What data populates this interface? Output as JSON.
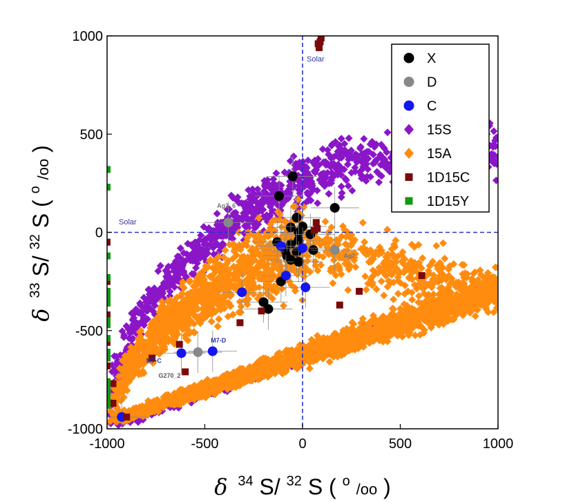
{
  "chart_data": {
    "type": "scatter",
    "title": "",
    "xlabel": {
      "prefix": "δ",
      "sup1": "34",
      "mid": "S/",
      "sup2": "32",
      "tail": "S (",
      "permil_sup": "o",
      "permil_sub": "/oo",
      "close": ")"
    },
    "ylabel": {
      "prefix": "δ",
      "sup1": "33",
      "mid": "S/",
      "sup2": "32",
      "tail": "S (",
      "permil_sup": "o",
      "permil_sub": "/oo",
      "close": ")"
    },
    "xlim": [
      -1000,
      1000
    ],
    "ylim": [
      -1000,
      1000
    ],
    "xticks": [
      -1000,
      -500,
      0,
      500,
      1000
    ],
    "yticks": [
      -1000,
      -500,
      0,
      500,
      1000
    ],
    "xtick_labels": [
      "-1000",
      "-500",
      "0",
      "500",
      "1000"
    ],
    "ytick_labels": [
      "-1000",
      "-500",
      "0",
      "500",
      "1000"
    ],
    "grid": false,
    "legend_position": "top-right",
    "solar_lines": {
      "x": 0,
      "y": 0,
      "label_v": "Solar",
      "label_h": "Solar",
      "color": "#2233cc"
    },
    "series": [
      {
        "name": "X",
        "marker": "circle",
        "color": "#000000",
        "points": [
          [
            -50,
            285
          ],
          [
            -120,
            185
          ],
          [
            165,
            125
          ],
          [
            -30,
            75
          ],
          [
            -60,
            25
          ],
          [
            0,
            30
          ],
          [
            -20,
            0
          ],
          [
            40,
            -10
          ],
          [
            -130,
            -50
          ],
          [
            -60,
            -60
          ],
          [
            -20,
            -40
          ],
          [
            -90,
            -90
          ],
          [
            -30,
            -100
          ],
          [
            -80,
            -120
          ],
          [
            -60,
            -140
          ],
          [
            -20,
            -150
          ],
          [
            55,
            -90
          ],
          [
            -110,
            -250
          ],
          [
            -200,
            -355
          ],
          [
            -175,
            -390
          ]
        ]
      },
      {
        "name": "D",
        "marker": "circle",
        "color": "#888888",
        "points": [
          [
            -380,
            50
          ],
          [
            165,
            -90
          ],
          [
            -535,
            -610
          ]
        ]
      },
      {
        "name": "C",
        "marker": "circle",
        "color": "#1515ee",
        "points": [
          [
            -110,
            -70
          ],
          [
            0,
            -80
          ],
          [
            -85,
            -220
          ],
          [
            15,
            -280
          ],
          [
            -310,
            -305
          ],
          [
            -620,
            -615
          ],
          [
            -460,
            -605
          ],
          [
            -925,
            -940
          ]
        ]
      },
      {
        "name": "15S",
        "marker": "diamond",
        "color": "#8a16c8",
        "points": []
      },
      {
        "name": "15A",
        "marker": "diamond",
        "color": "#ff8c0f",
        "points": []
      },
      {
        "name": "1D15C",
        "marker": "square",
        "color": "#7a0a0a",
        "points": [
          [
            80,
            960
          ],
          [
            85,
            940
          ],
          [
            90,
            970
          ],
          [
            95,
            990
          ],
          [
            70,
            50
          ],
          [
            75,
            20
          ],
          [
            60,
            10
          ],
          [
            -1000,
            -50
          ],
          [
            -1000,
            -250
          ],
          [
            -1000,
            -420
          ],
          [
            -1000,
            -560
          ],
          [
            -1000,
            -680
          ],
          [
            -1000,
            -790
          ],
          [
            -1000,
            -880
          ],
          [
            -970,
            -770
          ],
          [
            -970,
            -870
          ],
          [
            -630,
            -570
          ],
          [
            -770,
            -640
          ],
          [
            -600,
            -710
          ],
          [
            -320,
            -460
          ],
          [
            -210,
            -400
          ],
          [
            190,
            -370
          ],
          [
            290,
            -300
          ],
          [
            610,
            -220
          ],
          [
            -900,
            -940
          ]
        ]
      },
      {
        "name": "1D15Y",
        "marker": "square",
        "color": "#119911",
        "points": [
          [
            -1000,
            320
          ],
          [
            -1000,
            230
          ],
          [
            -1000,
            -120
          ],
          [
            -1000,
            -230
          ],
          [
            -1000,
            -300
          ],
          [
            -1000,
            -330
          ],
          [
            -1000,
            -360
          ],
          [
            -1000,
            -450
          ],
          [
            -1000,
            -470
          ],
          [
            -1000,
            -540
          ],
          [
            -1000,
            -610
          ],
          [
            -1000,
            -640
          ],
          [
            -1000,
            -760
          ],
          [
            -1000,
            -790
          ],
          [
            -1000,
            -820
          ],
          [
            -1000,
            -850
          ],
          [
            -1000,
            -880
          ]
        ]
      }
    ],
    "annotations": [
      {
        "text": "Ag2_6",
        "x": -390,
        "y": 125,
        "color": "#777777"
      },
      {
        "text": "Ag2",
        "x": 240,
        "y": -130,
        "color": "#777777"
      },
      {
        "text": "M7-D",
        "x": -430,
        "y": -560,
        "color": "#2233aa"
      },
      {
        "text": "M7-C",
        "x": -760,
        "y": -665,
        "color": "#2233aa"
      },
      {
        "text": "G270_2",
        "x": -680,
        "y": -740,
        "color": "#555555"
      }
    ]
  }
}
